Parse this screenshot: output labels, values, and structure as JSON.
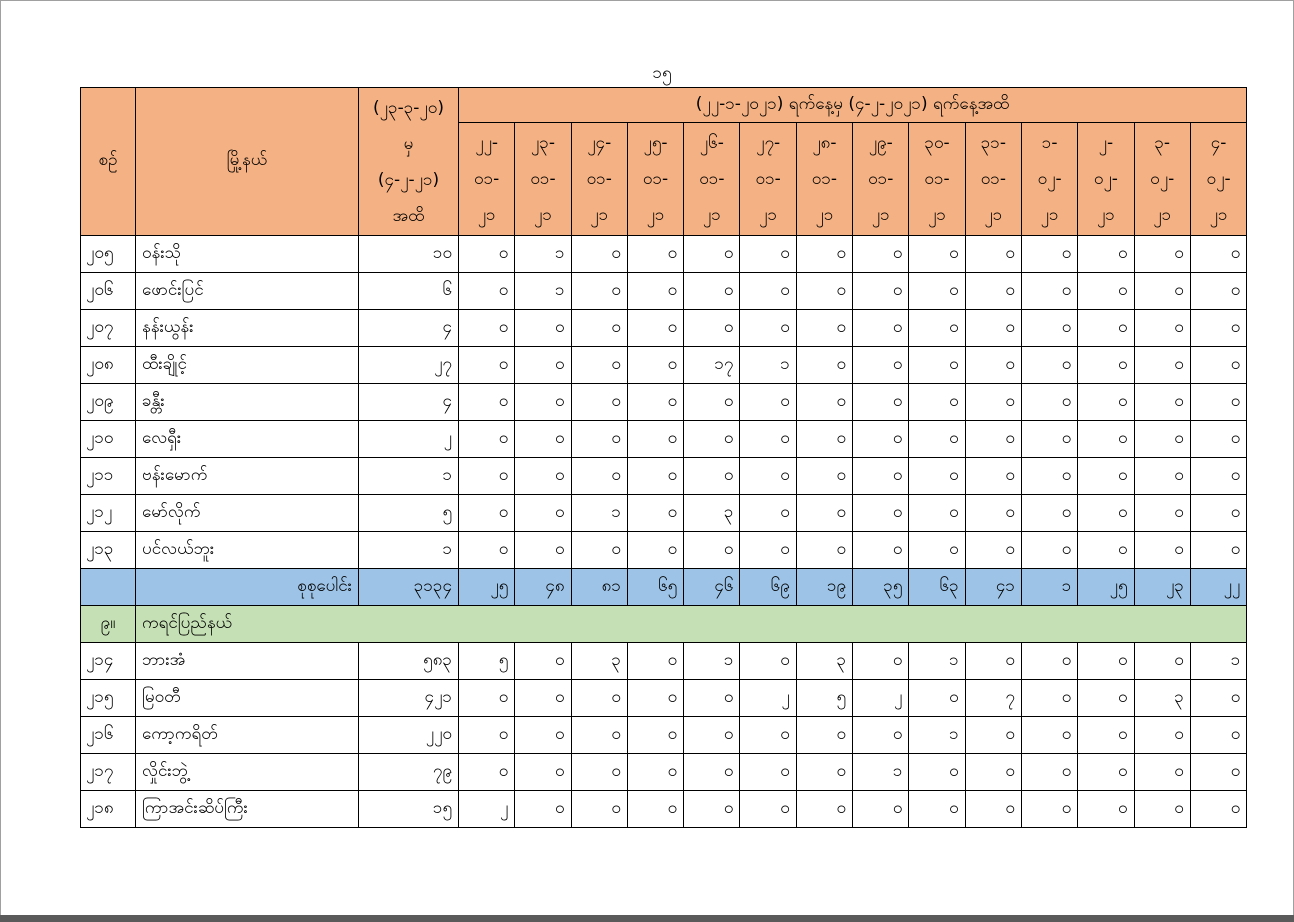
{
  "page_number": "၁၅",
  "header": {
    "sn": "စဉ်",
    "township": "မြို့နယ်",
    "cumulative_line1": "(၂၃-၃-၂၀)",
    "cumulative_line2": "မှ",
    "cumulative_line3": "(၄-၂-၂၁)",
    "cumulative_line4": "အထိ",
    "period": "(၂၂-၁-၂၀၂၁) ရက်နေ့မှ (၄-၂-၂၀၂၁) ရက်နေ့အထိ",
    "dates": [
      [
        "၂၂-",
        "၀၁-",
        "၂၁"
      ],
      [
        "၂၃-",
        "၀၁-",
        "၂၁"
      ],
      [
        "၂၄-",
        "၀၁-",
        "၂၁"
      ],
      [
        "၂၅-",
        "၀၁-",
        "၂၁"
      ],
      [
        "၂၆-",
        "၀၁-",
        "၂၁"
      ],
      [
        "၂၇-",
        "၀၁-",
        "၂၁"
      ],
      [
        "၂၈-",
        "၀၁-",
        "၂၁"
      ],
      [
        "၂၉-",
        "၀၁-",
        "၂၁"
      ],
      [
        "၃၀-",
        "၀၁-",
        "၂၁"
      ],
      [
        "၃၁-",
        "၀၁-",
        "၂၁"
      ],
      [
        "၁-",
        "၀၂-",
        "၂၁"
      ],
      [
        "၂-",
        "၀၂-",
        "၂၁"
      ],
      [
        "၃-",
        "၀၂-",
        "၂၁"
      ],
      [
        "၄-",
        "၀၂-",
        "၂၁"
      ]
    ]
  },
  "rows_a": [
    {
      "sn": "၂၀၅",
      "township": "ဝန်းသို",
      "total": "၁၀",
      "daily": [
        "၀",
        "၁",
        "၀",
        "၀",
        "၀",
        "၀",
        "၀",
        "၀",
        "၀",
        "၀",
        "၀",
        "၀",
        "၀",
        "၀"
      ]
    },
    {
      "sn": "၂၀၆",
      "township": "ဖောင်းပြင်",
      "total": "၆",
      "daily": [
        "၀",
        "၁",
        "၀",
        "၀",
        "၀",
        "၀",
        "၀",
        "၀",
        "၀",
        "၀",
        "၀",
        "၀",
        "၀",
        "၀"
      ]
    },
    {
      "sn": "၂၀၇",
      "township": "နန်းယွန်း",
      "total": "၄",
      "daily": [
        "၀",
        "၀",
        "၀",
        "၀",
        "၀",
        "၀",
        "၀",
        "၀",
        "၀",
        "၀",
        "၀",
        "၀",
        "၀",
        "၀"
      ]
    },
    {
      "sn": "၂၀၈",
      "township": "ထီးချိုင့်",
      "total": "၂၇",
      "daily": [
        "၀",
        "၀",
        "၀",
        "၀",
        "၁၇",
        "၁",
        "၀",
        "၀",
        "၀",
        "၀",
        "၀",
        "၀",
        "၀",
        "၀"
      ]
    },
    {
      "sn": "၂၀၉",
      "township": "ခန္တီး",
      "total": "၄",
      "daily": [
        "၀",
        "၀",
        "၀",
        "၀",
        "၀",
        "၀",
        "၀",
        "၀",
        "၀",
        "၀",
        "၀",
        "၀",
        "၀",
        "၀"
      ]
    },
    {
      "sn": "၂၁၀",
      "township": "လေရှီး",
      "total": "၂",
      "daily": [
        "၀",
        "၀",
        "၀",
        "၀",
        "၀",
        "၀",
        "၀",
        "၀",
        "၀",
        "၀",
        "၀",
        "၀",
        "၀",
        "၀"
      ]
    },
    {
      "sn": "၂၁၁",
      "township": "ဗန်းမောက်",
      "total": "၁",
      "daily": [
        "၀",
        "၀",
        "၀",
        "၀",
        "၀",
        "၀",
        "၀",
        "၀",
        "၀",
        "၀",
        "၀",
        "၀",
        "၀",
        "၀"
      ]
    },
    {
      "sn": "၂၁၂",
      "township": "မော်လိုက်",
      "total": "၅",
      "daily": [
        "၀",
        "၀",
        "၁",
        "၀",
        "၃",
        "၀",
        "၀",
        "၀",
        "၀",
        "၀",
        "၀",
        "၀",
        "၀",
        "၀"
      ]
    },
    {
      "sn": "၂၁၃",
      "township": "ပင်လယ်ဘူး",
      "total": "၁",
      "daily": [
        "၀",
        "၀",
        "၀",
        "၀",
        "၀",
        "၀",
        "၀",
        "၀",
        "၀",
        "၀",
        "၀",
        "၀",
        "၀",
        "၀"
      ]
    }
  ],
  "total_row": {
    "label": "စုစုပေါင်း",
    "total": "၃၁၃၄",
    "daily": [
      "၂၅",
      "၄၈",
      "၈၁",
      "၆၅",
      "၄၆",
      "၆၉",
      "၁၉",
      "၃၅",
      "၆၃",
      "၄၁",
      "၁",
      "၂၅",
      "၂၃",
      "၂၂"
    ]
  },
  "section": {
    "sn": "၉။",
    "label": "ကရင်ပြည်နယ်"
  },
  "rows_b": [
    {
      "sn": "၂၁၄",
      "township": "ဘားအံ",
      "total": "၅၈၃",
      "daily": [
        "၅",
        "၀",
        "၃",
        "၀",
        "၁",
        "၀",
        "၃",
        "၀",
        "၁",
        "၀",
        "၀",
        "၀",
        "၀",
        "၁"
      ]
    },
    {
      "sn": "၂၁၅",
      "township": "မြဝတီ",
      "total": "၄၂၁",
      "daily": [
        "၀",
        "၀",
        "၀",
        "၀",
        "၀",
        "၂",
        "၅",
        "၂",
        "၀",
        "၇",
        "၀",
        "၀",
        "၃",
        "၀"
      ]
    },
    {
      "sn": "၂၁၆",
      "township": "ကော့ကရိတ်",
      "total": "၂၂၀",
      "daily": [
        "၀",
        "၀",
        "၀",
        "၀",
        "၀",
        "၀",
        "၀",
        "၀",
        "၁",
        "၀",
        "၀",
        "၀",
        "၀",
        "၀"
      ]
    },
    {
      "sn": "၂၁၇",
      "township": "လှိုင်းဘွဲ့",
      "total": "၇၉",
      "daily": [
        "၀",
        "၀",
        "၀",
        "၀",
        "၀",
        "၀",
        "၀",
        "၁",
        "၀",
        "၀",
        "၀",
        "၀",
        "၀",
        "၀"
      ]
    },
    {
      "sn": "၂၁၈",
      "township": "ကြာအင်းဆိပ်ကြီး",
      "total": "၁၅",
      "daily": [
        "၂",
        "၀",
        "၀",
        "၀",
        "၀",
        "၀",
        "၀",
        "၀",
        "၀",
        "၀",
        "၀",
        "၀",
        "၀",
        "၀"
      ]
    }
  ],
  "colors": {
    "header": "#f4b183",
    "total": "#9dc3e6",
    "section": "#c5e0b4"
  }
}
